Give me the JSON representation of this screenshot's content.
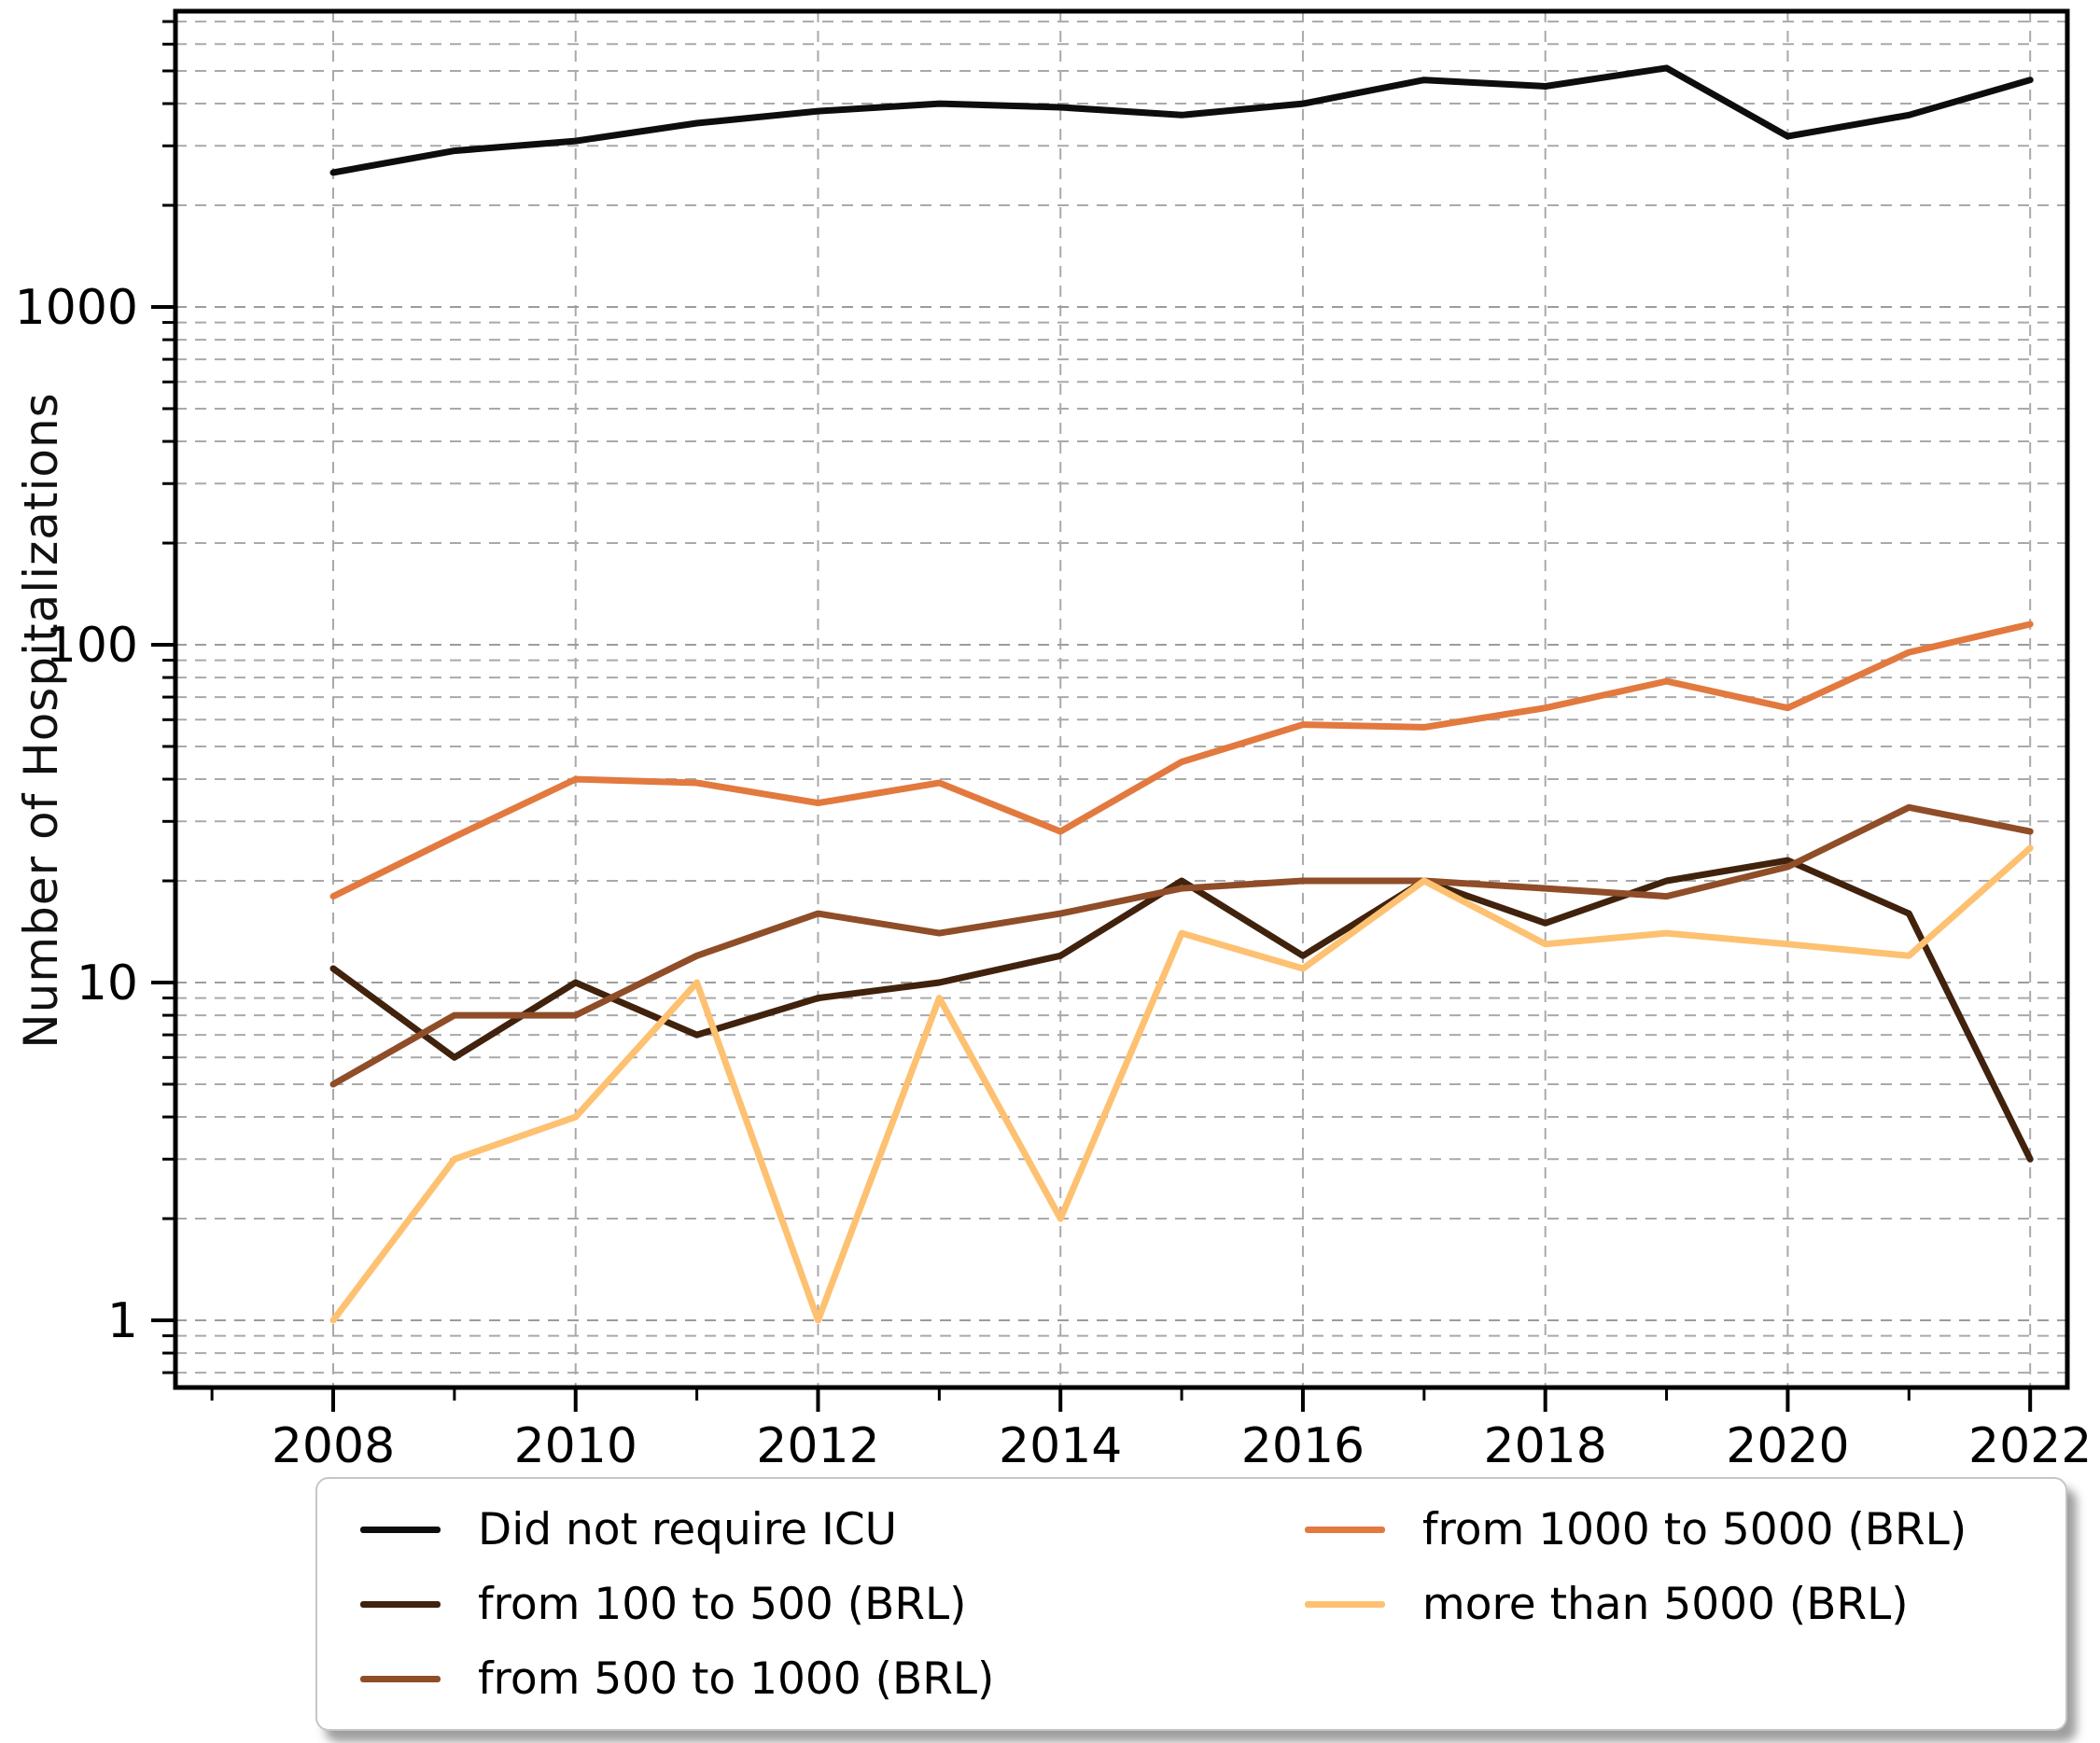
{
  "figure": {
    "ylabel": "Number of Hospitalizations",
    "background": "#ffffff",
    "grid_color": "#a9a9a9",
    "axis_color": "#000000"
  },
  "chart_data": {
    "type": "line",
    "title": "",
    "xlabel": "",
    "ylabel": "Number of Hospitalizations",
    "yscale": "log",
    "xlim": [
      2006.7,
      2022.3
    ],
    "ylim": [
      0.63,
      7600
    ],
    "grid": true,
    "legend_position": "bottom",
    "x": [
      2008,
      2009,
      2010,
      2011,
      2012,
      2013,
      2014,
      2015,
      2016,
      2017,
      2018,
      2019,
      2020,
      2021,
      2022
    ],
    "x_tick_values": [
      2008,
      2010,
      2012,
      2014,
      2016,
      2018,
      2020,
      2022
    ],
    "x_tick_labels": [
      "2008",
      "2010",
      "2012",
      "2014",
      "2016",
      "2018",
      "2020",
      "2022"
    ],
    "y_tick_values": [
      1,
      10,
      100,
      1000
    ],
    "y_tick_labels": [
      "1",
      "10",
      "100",
      "1000"
    ],
    "series": [
      {
        "name": "Did not require ICU",
        "color": "#0d0d0d",
        "values": [
          2500,
          2900,
          3100,
          3500,
          3800,
          4000,
          3900,
          3700,
          4000,
          4700,
          4500,
          5100,
          3200,
          3700,
          4700
        ]
      },
      {
        "name": "from 100 to 500 (BRL)",
        "color": "#40220d",
        "values": [
          11,
          6,
          10,
          7,
          9,
          10,
          12,
          20,
          12,
          20,
          15,
          20,
          23,
          16,
          3
        ]
      },
      {
        "name": "from 500 to 1000 (BRL)",
        "color": "#8f4d28",
        "values": [
          5,
          8,
          8,
          12,
          16,
          14,
          16,
          19,
          20,
          20,
          19,
          18,
          22,
          33,
          28
        ]
      },
      {
        "name": "from 1000 to 5000 (BRL)",
        "color": "#e2793e",
        "values": [
          18,
          27,
          40,
          39,
          34,
          39,
          28,
          45,
          58,
          57,
          65,
          78,
          65,
          95,
          115
        ]
      },
      {
        "name": "more than 5000 (BRL)",
        "color": "#fdc171",
        "values": [
          1,
          3,
          4,
          10,
          1,
          9,
          2,
          14,
          11,
          20,
          13,
          14,
          13,
          12,
          25
        ]
      }
    ]
  },
  "legend": {
    "items": [
      {
        "label": "Did not require ICU",
        "color": "#0d0d0d"
      },
      {
        "label": "from 100 to 500 (BRL)",
        "color": "#40220d"
      },
      {
        "label": "from 500 to 1000 (BRL)",
        "color": "#8f4d28"
      },
      {
        "label": "from 1000 to 5000 (BRL)",
        "color": "#e2793e"
      },
      {
        "label": "more than 5000 (BRL)",
        "color": "#fdc171"
      }
    ]
  }
}
